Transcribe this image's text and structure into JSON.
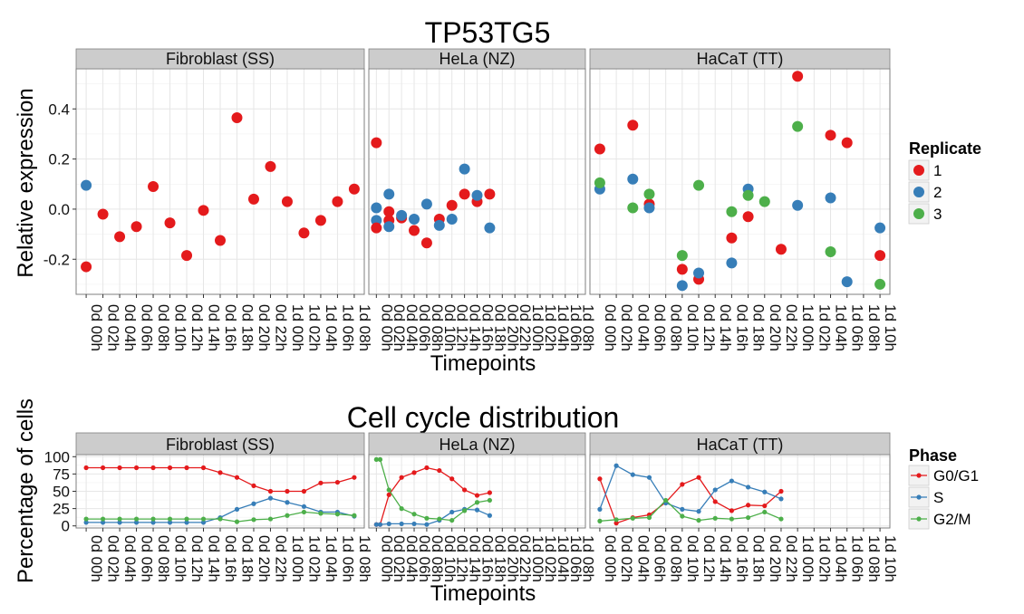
{
  "timepoints": {
    "standard": [
      "0d 00h",
      "0d 02h",
      "0d 04h",
      "0d 06h",
      "0d 08h",
      "0d 10h",
      "0d 12h",
      "0d 14h",
      "0d 16h",
      "0d 18h",
      "0d 20h",
      "0d 22h",
      "1d 00h",
      "1d 02h",
      "1d 04h",
      "1d 06h",
      "1d 08h"
    ],
    "hacat": [
      "0d 00h",
      "0d 02h",
      "0d 04h",
      "0d 06h",
      "0d 08h",
      "0d 10h",
      "0d 12h",
      "0d 14h",
      "0d 16h",
      "0d 18h",
      "0d 20h",
      "0d 22h",
      "1d 00h",
      "1d 02h",
      "1d 04h",
      "1d 06h",
      "1d 08h",
      "1d 10h"
    ]
  },
  "colors": {
    "1": "#E41A1C",
    "2": "#377EB8",
    "3": "#4DAF4A",
    "G0/G1": "#E41A1C",
    "S": "#377EB8",
    "G2/M": "#4DAF4A"
  },
  "chart_data": [
    {
      "type": "scatter",
      "title": "TP53TG5",
      "xlabel": "Timepoints",
      "ylabel": "Relative expression",
      "ylim": [
        -0.34,
        0.56
      ],
      "yticks": [
        -0.2,
        0.0,
        0.2,
        0.4
      ],
      "ytick_labels": [
        "-0.2",
        "0.0",
        "0.2",
        "0.4"
      ],
      "legend_title": "Replicate",
      "legend_placement": "right",
      "legend_entries": [
        "1",
        "2",
        "3"
      ],
      "grid": true,
      "panels": [
        {
          "label": "Fibroblast (SS)",
          "timepoints": "standard",
          "series": [
            {
              "name": "1",
              "values": [
                -0.23,
                -0.02,
                -0.11,
                -0.07,
                0.09,
                -0.055,
                -0.185,
                -0.005,
                -0.125,
                0.365,
                0.04,
                0.17,
                0.03,
                -0.095,
                -0.045,
                0.03,
                0.08
              ]
            },
            {
              "name": "2",
              "values": [
                0.095,
                null,
                null,
                null,
                null,
                null,
                null,
                null,
                null,
                null,
                null,
                null,
                null,
                null,
                null,
                null,
                null
              ]
            }
          ]
        },
        {
          "label": "HeLa (NZ)",
          "timepoints": "standard",
          "series": [
            {
              "name": "1",
              "values": [
                0.265,
                -0.01,
                -0.035,
                -0.085,
                -0.135,
                -0.04,
                0.015,
                0.06,
                0.03,
                0.06
              ]
            },
            {
              "name": "2",
              "values": [
                -0.045,
                0.06,
                -0.025,
                -0.04,
                0.02,
                -0.065,
                -0.04,
                0.16,
                0.055,
                -0.075
              ]
            },
            {
              "name": "1",
              "values": [
                -0.075,
                -0.045,
                null,
                null,
                null,
                null,
                null,
                null,
                null,
                null
              ]
            },
            {
              "name": "2",
              "values": [
                0.005,
                -0.07,
                null,
                null,
                null,
                null,
                null,
                null,
                null,
                null
              ]
            }
          ]
        },
        {
          "label": "HaCaT (TT)",
          "timepoints": "hacat",
          "series": [
            {
              "name": "1",
              "values": [
                0.24,
                null,
                0.335,
                0.02,
                null,
                -0.24,
                -0.28,
                null,
                -0.115,
                -0.03,
                null,
                -0.16,
                0.53,
                null,
                0.295,
                0.265,
                null,
                -0.185
              ]
            },
            {
              "name": "2",
              "values": [
                0.08,
                null,
                0.12,
                0.005,
                null,
                -0.305,
                -0.255,
                null,
                -0.215,
                0.08,
                null,
                null,
                0.015,
                null,
                0.045,
                -0.29,
                null,
                -0.075
              ]
            },
            {
              "name": "3",
              "values": [
                0.105,
                null,
                0.005,
                0.06,
                null,
                -0.185,
                0.095,
                null,
                -0.01,
                0.055,
                0.03,
                null,
                0.33,
                null,
                -0.17,
                null,
                null,
                -0.3
              ]
            }
          ]
        }
      ]
    },
    {
      "type": "line",
      "title": "Cell cycle distribution",
      "xlabel": "Timepoints",
      "ylabel": "Percentage of cells",
      "ylim": [
        -3,
        103
      ],
      "yticks": [
        0,
        25,
        50,
        75,
        100
      ],
      "ytick_labels": [
        "0",
        "25",
        "50",
        "75",
        "100"
      ],
      "legend_title": "Phase",
      "legend_placement": "right",
      "legend_entries": [
        "G0/G1",
        "S",
        "G2/M"
      ],
      "grid": true,
      "panels": [
        {
          "label": "Fibroblast (SS)",
          "timepoints": "standard",
          "series": [
            {
              "name": "G0/G1",
              "values": [
                84,
                84,
                84,
                84,
                84,
                84,
                84,
                84,
                77,
                70,
                58,
                50,
                50,
                50,
                62,
                63,
                70
              ]
            },
            {
              "name": "S",
              "values": [
                5,
                5,
                5,
                5,
                5,
                5,
                5,
                5,
                12,
                24,
                32,
                40,
                34,
                28,
                20,
                20,
                14
              ]
            },
            {
              "name": "G2/M",
              "values": [
                10,
                10,
                10,
                10,
                10,
                10,
                10,
                10,
                10,
                6,
                9,
                10,
                15,
                20,
                18,
                17,
                15
              ]
            }
          ]
        },
        {
          "label": "HeLa (NZ)",
          "timepoints": "standard",
          "series": [
            {
              "name": "G0/G1",
              "x": [
                0,
                0.3,
                1,
                2,
                3,
                4,
                5,
                6,
                7,
                8,
                9,
                10
              ],
              "values": [
                2,
                2,
                45,
                70,
                77,
                84,
                80,
                68,
                52,
                44,
                48,
                null
              ]
            },
            {
              "name": "S",
              "x": [
                0,
                0.3,
                1,
                2,
                3,
                4,
                5,
                6,
                7,
                8,
                9,
                10
              ],
              "values": [
                2,
                2,
                3,
                3,
                3,
                2,
                8,
                20,
                24,
                23,
                15,
                null
              ]
            },
            {
              "name": "G2/M",
              "x": [
                0,
                0.3,
                1,
                2,
                3,
                4,
                5,
                6,
                7,
                8,
                9,
                10
              ],
              "values": [
                96,
                96,
                52,
                25,
                17,
                11,
                10,
                8,
                22,
                34,
                37,
                null
              ]
            }
          ]
        },
        {
          "label": "HaCaT (TT)",
          "timepoints": "hacat",
          "series": [
            {
              "name": "G0/G1",
              "x": [
                0,
                1,
                2,
                3,
                4,
                5,
                6,
                7,
                8,
                9,
                10,
                11,
                12
              ],
              "values": [
                68,
                4,
                12,
                16,
                34,
                60,
                70,
                35,
                22,
                30,
                29,
                50,
                null
              ]
            },
            {
              "name": "S",
              "x": [
                0,
                1,
                2,
                3,
                4,
                5,
                6,
                7,
                8,
                9,
                10,
                11,
                12
              ],
              "values": [
                24,
                87,
                74,
                70,
                33,
                24,
                21,
                52,
                65,
                56,
                49,
                39,
                null
              ]
            },
            {
              "name": "G2/M",
              "x": [
                0,
                1,
                2,
                3,
                4,
                5,
                6,
                7,
                8,
                9,
                10,
                11,
                12
              ],
              "values": [
                7,
                9,
                11,
                12,
                37,
                14,
                8,
                11,
                10,
                12,
                20,
                10,
                null
              ]
            }
          ]
        }
      ]
    }
  ]
}
